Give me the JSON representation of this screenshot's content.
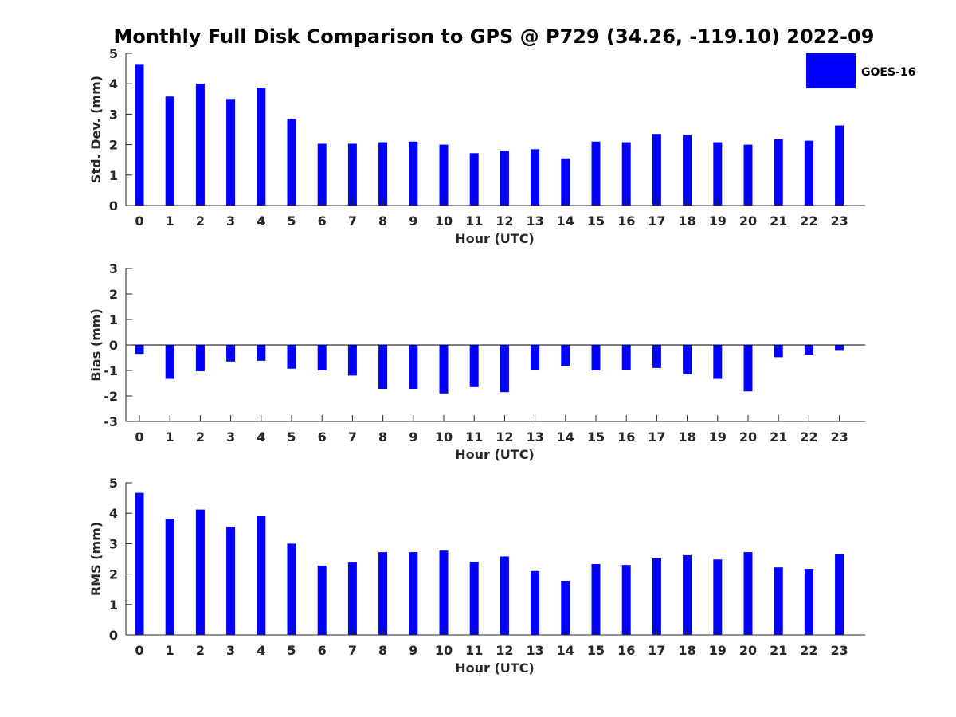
{
  "title": "Monthly Full Disk Comparison to GPS @ P729 (34.26, -119.10) 2022-09",
  "legend": {
    "label": "GOES-16",
    "color": "#0000ff"
  },
  "chart_data": [
    {
      "type": "bar",
      "name": "std",
      "categories": [
        "0",
        "1",
        "2",
        "3",
        "4",
        "5",
        "6",
        "7",
        "8",
        "9",
        "10",
        "11",
        "12",
        "13",
        "14",
        "15",
        "16",
        "17",
        "18",
        "19",
        "20",
        "21",
        "22",
        "23"
      ],
      "values": [
        4.65,
        3.58,
        4.0,
        3.5,
        3.87,
        2.85,
        2.03,
        2.03,
        2.08,
        2.1,
        2.0,
        1.72,
        1.8,
        1.85,
        1.55,
        2.1,
        2.08,
        2.35,
        2.32,
        2.08,
        2.0,
        2.18,
        2.13,
        2.63
      ],
      "series_name": "GOES-16",
      "xlabel": "Hour (UTC)",
      "ylabel": "Std. Dev. (mm)",
      "ylim": [
        0,
        5
      ],
      "yticks": [
        "0",
        "1",
        "2",
        "3",
        "4",
        "5"
      ]
    },
    {
      "type": "bar",
      "name": "bias",
      "categories": [
        "0",
        "1",
        "2",
        "3",
        "4",
        "5",
        "6",
        "7",
        "8",
        "9",
        "10",
        "11",
        "12",
        "13",
        "14",
        "15",
        "16",
        "17",
        "18",
        "19",
        "20",
        "21",
        "22",
        "23"
      ],
      "values": [
        -0.35,
        -1.33,
        -1.03,
        -0.65,
        -0.62,
        -0.93,
        -1.0,
        -1.2,
        -1.72,
        -1.72,
        -1.9,
        -1.65,
        -1.85,
        -0.97,
        -0.82,
        -1.0,
        -0.97,
        -0.9,
        -1.15,
        -1.33,
        -1.82,
        -0.48,
        -0.38,
        -0.2
      ],
      "series_name": "GOES-16",
      "xlabel": "Hour (UTC)",
      "ylabel": "Bias (mm)",
      "ylim": [
        -3,
        3
      ],
      "yticks": [
        "-3",
        "-2",
        "-1",
        "0",
        "1",
        "2",
        "3"
      ]
    },
    {
      "type": "bar",
      "name": "rms",
      "categories": [
        "0",
        "1",
        "2",
        "3",
        "4",
        "5",
        "6",
        "7",
        "8",
        "9",
        "10",
        "11",
        "12",
        "13",
        "14",
        "15",
        "16",
        "17",
        "18",
        "19",
        "20",
        "21",
        "22",
        "23"
      ],
      "values": [
        4.67,
        3.82,
        4.12,
        3.55,
        3.9,
        3.0,
        2.28,
        2.38,
        2.72,
        2.72,
        2.77,
        2.4,
        2.58,
        2.1,
        1.78,
        2.33,
        2.3,
        2.52,
        2.62,
        2.48,
        2.72,
        2.22,
        2.17,
        2.65
      ],
      "series_name": "GOES-16",
      "xlabel": "Hour (UTC)",
      "ylabel": "RMS (mm)",
      "ylim": [
        0,
        5
      ],
      "yticks": [
        "0",
        "1",
        "2",
        "3",
        "4",
        "5"
      ]
    }
  ]
}
